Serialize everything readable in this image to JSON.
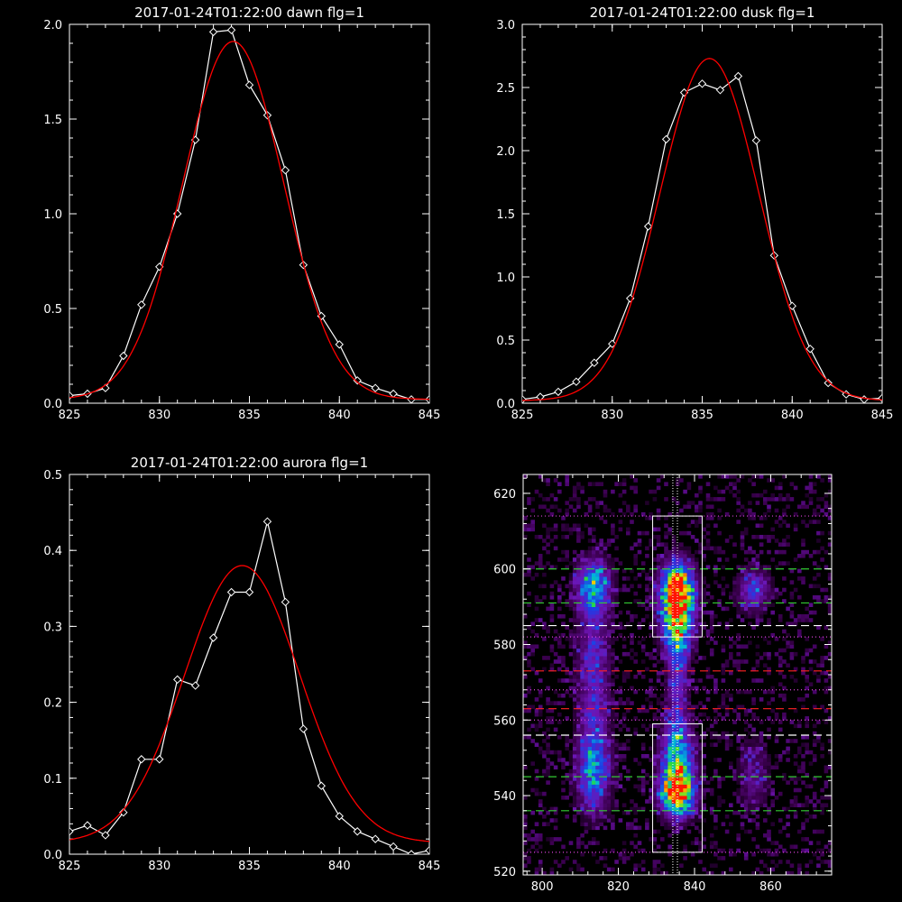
{
  "chart_data": [
    {
      "type": "line",
      "title": "2017-01-24T01:22:00 dawn flg=1",
      "xlim": [
        825,
        845
      ],
      "ylim": [
        0,
        2.0
      ],
      "xticks": [
        825,
        830,
        835,
        840,
        845
      ],
      "yticks": [
        0.0,
        0.5,
        1.0,
        1.5,
        2.0
      ],
      "yfmt": 1,
      "series": [
        {
          "kind": "measured",
          "color": "#ffffff",
          "x": [
            825,
            826,
            827,
            828,
            829,
            830,
            831,
            832,
            833,
            834,
            835,
            836,
            837,
            838,
            839,
            840,
            841,
            842,
            843,
            844,
            845
          ],
          "y": [
            0.04,
            0.05,
            0.08,
            0.25,
            0.52,
            0.72,
            1.0,
            1.39,
            1.96,
            1.97,
            1.68,
            1.52,
            1.23,
            0.73,
            0.46,
            0.31,
            0.12,
            0.08,
            0.05,
            0.02,
            0.02
          ]
        },
        {
          "kind": "fit",
          "color": "#ff0000",
          "amp": 1.89,
          "mu": 834.1,
          "sigma": 2.8,
          "offset": 0.02
        }
      ]
    },
    {
      "type": "line",
      "title": "2017-01-24T01:22:00 dusk flg=1",
      "xlim": [
        825,
        845
      ],
      "ylim": [
        0,
        3.0
      ],
      "xticks": [
        825,
        830,
        835,
        840,
        845
      ],
      "yticks": [
        0.0,
        0.5,
        1.0,
        1.5,
        2.0,
        2.5,
        3.0
      ],
      "yfmt": 1,
      "series": [
        {
          "kind": "measured",
          "color": "#ffffff",
          "x": [
            825,
            826,
            827,
            828,
            829,
            830,
            831,
            832,
            833,
            834,
            835,
            836,
            837,
            838,
            839,
            840,
            841,
            842,
            843,
            844,
            845
          ],
          "y": [
            0.03,
            0.05,
            0.09,
            0.17,
            0.32,
            0.47,
            0.83,
            1.4,
            2.09,
            2.46,
            2.53,
            2.48,
            2.59,
            2.08,
            1.17,
            0.77,
            0.43,
            0.16,
            0.07,
            0.03,
            0.04
          ]
        },
        {
          "kind": "fit",
          "color": "#ff0000",
          "amp": 2.71,
          "mu": 835.4,
          "sigma": 2.75,
          "offset": 0.02
        }
      ]
    },
    {
      "type": "line",
      "title": "2017-01-24T01:22:00 aurora flg=1",
      "xlim": [
        825,
        845
      ],
      "ylim": [
        0,
        0.5
      ],
      "xticks": [
        825,
        830,
        835,
        840,
        845
      ],
      "yticks": [
        0.0,
        0.1,
        0.2,
        0.3,
        0.4,
        0.5
      ],
      "yfmt": 1,
      "series": [
        {
          "kind": "measured",
          "color": "#ffffff",
          "x": [
            825,
            826,
            827,
            828,
            829,
            830,
            831,
            832,
            833,
            834,
            835,
            836,
            837,
            838,
            839,
            840,
            841,
            842,
            843,
            844,
            845
          ],
          "y": [
            0.03,
            0.038,
            0.025,
            0.055,
            0.125,
            0.125,
            0.23,
            0.222,
            0.285,
            0.345,
            0.345,
            0.438,
            0.332,
            0.165,
            0.09,
            0.05,
            0.03,
            0.02,
            0.01,
            0.0,
            0.005
          ]
        },
        {
          "kind": "fit",
          "color": "#ff0000",
          "amp": 0.365,
          "mu": 834.6,
          "sigma": 3.2,
          "offset": 0.015
        }
      ]
    },
    {
      "type": "heatmap",
      "title": "",
      "xlim": [
        795,
        876
      ],
      "ylim": [
        519,
        625
      ],
      "xticks": [
        800,
        820,
        840,
        860
      ],
      "yticks": [
        520,
        540,
        560,
        580,
        600,
        620
      ],
      "yfmt": 0,
      "blobs": [
        {
          "x": 813,
          "y": 595,
          "sx": 3,
          "sy": 5,
          "amp": 0.55
        },
        {
          "x": 813,
          "y": 578,
          "sx": 3,
          "sy": 10,
          "amp": 0.25
        },
        {
          "x": 813,
          "y": 545,
          "sx": 3,
          "sy": 7,
          "amp": 0.45
        },
        {
          "x": 813,
          "y": 560,
          "sx": 3,
          "sy": 10,
          "amp": 0.2
        },
        {
          "x": 835,
          "y": 594,
          "sx": 3,
          "sy": 5,
          "amp": 1.0
        },
        {
          "x": 835,
          "y": 584,
          "sx": 3,
          "sy": 5,
          "amp": 0.55
        },
        {
          "x": 835,
          "y": 548,
          "sx": 3,
          "sy": 7,
          "amp": 0.6
        },
        {
          "x": 835,
          "y": 540,
          "sx": 3,
          "sy": 4,
          "amp": 0.75
        },
        {
          "x": 835,
          "y": 570,
          "sx": 2,
          "sy": 12,
          "amp": 0.3
        },
        {
          "x": 855,
          "y": 594,
          "sx": 3,
          "sy": 4,
          "amp": 0.35
        },
        {
          "x": 855,
          "y": 545,
          "sx": 3,
          "sy": 7,
          "amp": 0.2
        }
      ],
      "boxes": [
        {
          "x0": 829,
          "x1": 842,
          "y0": 582,
          "y1": 614
        },
        {
          "x0": 829,
          "x1": 842,
          "y0": 525,
          "y1": 559
        }
      ],
      "vlines_dotted": [
        834.3,
        835.5
      ],
      "hlines": [
        {
          "y": 614,
          "color": "#dd44dd",
          "style": "dotted"
        },
        {
          "y": 600,
          "color": "#33cc33",
          "style": "dashed"
        },
        {
          "y": 591,
          "color": "#33cc33",
          "style": "dashed"
        },
        {
          "y": 585,
          "color": "#ffffff",
          "style": "dashed"
        },
        {
          "y": 582,
          "color": "#dd44dd",
          "style": "dotted"
        },
        {
          "y": 573,
          "color": "#ff2222",
          "style": "dashed"
        },
        {
          "y": 568,
          "color": "#dd44dd",
          "style": "dotted"
        },
        {
          "y": 563,
          "color": "#ff2222",
          "style": "dashed"
        },
        {
          "y": 560,
          "color": "#dd44dd",
          "style": "dotted"
        },
        {
          "y": 556,
          "color": "#ffffff",
          "style": "dashed"
        },
        {
          "y": 545,
          "color": "#33cc33",
          "style": "dashed"
        },
        {
          "y": 536,
          "color": "#33cc33",
          "style": "dashed"
        },
        {
          "y": 525,
          "color": "#dd44dd",
          "style": "dotted"
        }
      ]
    }
  ]
}
